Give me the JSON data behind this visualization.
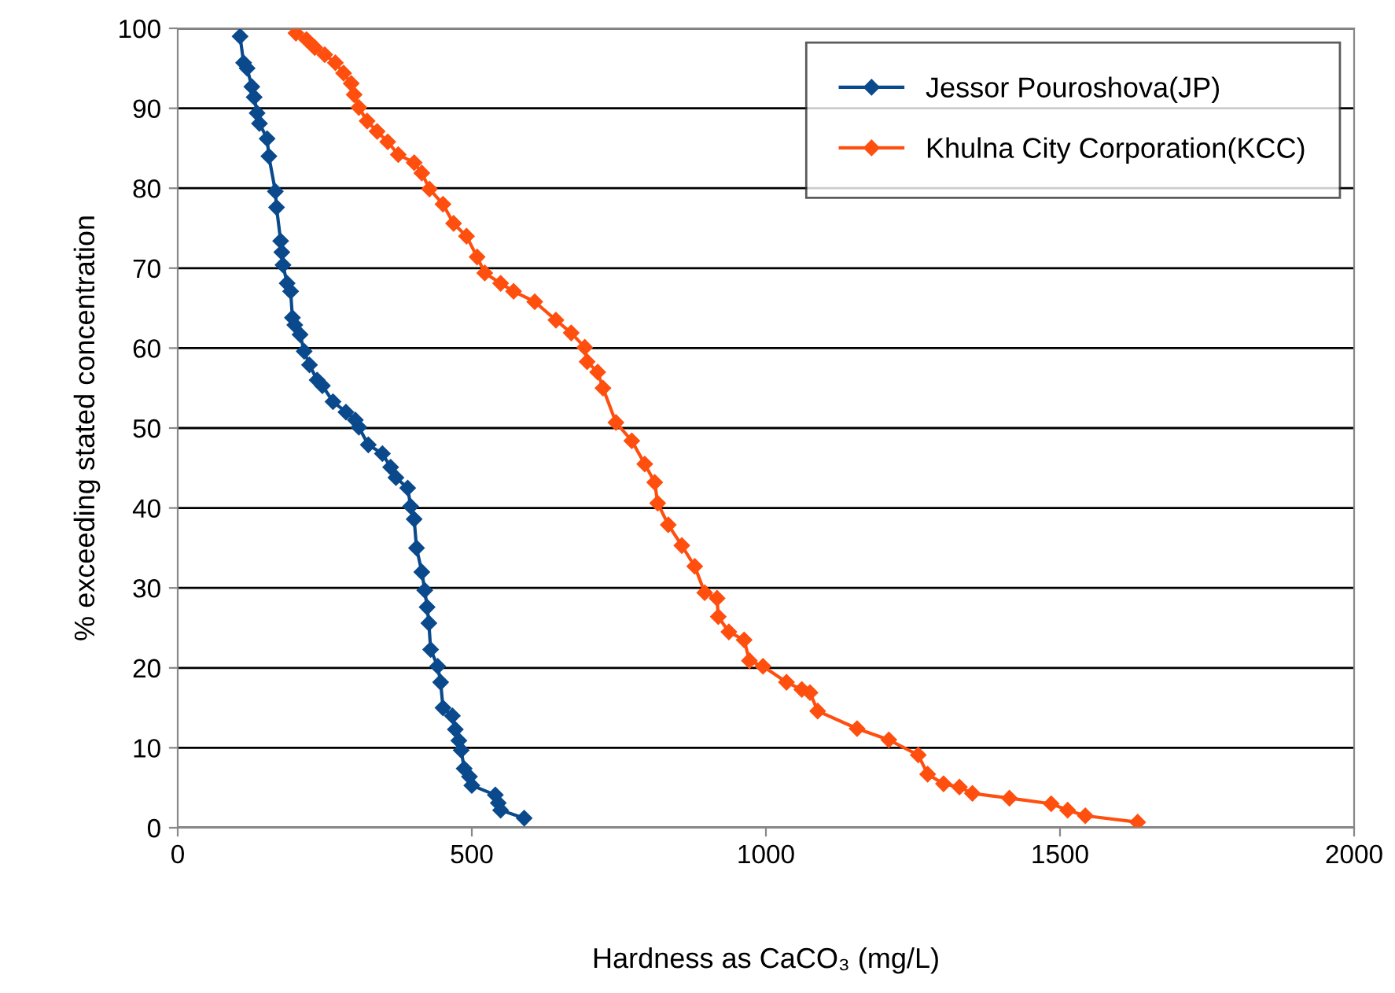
{
  "chart_data": {
    "type": "line",
    "xlabel": "Hardness as CaCO₃ (mg/L)",
    "ylabel": "% exceeding stated concentration",
    "xlim": [
      0,
      2000
    ],
    "xticks": [
      0,
      500,
      1000,
      1500,
      2000
    ],
    "ylim": [
      0,
      100
    ],
    "yticks": [
      0,
      10,
      20,
      30,
      40,
      50,
      60,
      70,
      80,
      90,
      100
    ],
    "grid": "y",
    "legend": "top right",
    "marker": "diamond",
    "line_style": "solid",
    "series": [
      {
        "name": "Jessor Pouroshova(JP)",
        "color": "#0a4a8c",
        "x": [
          106,
          112,
          118,
          126,
          130,
          135,
          139,
          152,
          155,
          166,
          168,
          175,
          177,
          179,
          186,
          192,
          195,
          199,
          208,
          215,
          224,
          237,
          246,
          264,
          286,
          302,
          308,
          324,
          348,
          362,
          371,
          391,
          396,
          402,
          406,
          415,
          420,
          424,
          427,
          430,
          442,
          447,
          451,
          467,
          472,
          478,
          482,
          487,
          496,
          500,
          540,
          545,
          549,
          589
        ],
        "values": [
          99.0,
          95.7,
          95.0,
          92.7,
          91.4,
          89.4,
          88.1,
          86.2,
          84.0,
          79.6,
          77.6,
          73.4,
          72.0,
          70.4,
          68.1,
          67.1,
          63.8,
          62.9,
          61.7,
          59.6,
          57.9,
          56.0,
          55.3,
          53.3,
          52.0,
          51.0,
          50.1,
          47.9,
          46.8,
          45.1,
          43.8,
          42.5,
          40.2,
          38.6,
          35.0,
          32.0,
          29.7,
          27.6,
          25.6,
          22.3,
          20.2,
          18.2,
          15.0,
          14.0,
          12.3,
          10.9,
          9.7,
          7.4,
          6.4,
          5.3,
          4.1,
          3.1,
          2.2,
          1.2
        ]
      },
      {
        "name": "Khulna City Corporation(KCC)",
        "color": "#ff4f0f",
        "x": [
          201,
          219,
          233,
          250,
          268,
          282,
          295,
          300,
          308,
          322,
          339,
          357,
          375,
          402,
          415,
          428,
          451,
          469,
          491,
          509,
          522,
          549,
          571,
          607,
          643,
          669,
          692,
          696,
          714,
          723,
          745,
          772,
          794,
          811,
          816,
          834,
          857,
          879,
          896,
          917,
          919,
          937,
          963,
          972,
          995,
          1035,
          1061,
          1075,
          1088,
          1155,
          1209,
          1259,
          1275,
          1302,
          1329,
          1351,
          1414,
          1485,
          1513,
          1543,
          1632
        ],
        "values": [
          99.4,
          98.6,
          97.6,
          96.7,
          95.7,
          94.4,
          93.1,
          91.7,
          90.1,
          88.4,
          87.1,
          85.8,
          84.2,
          83.2,
          81.9,
          79.9,
          78.0,
          75.6,
          74.0,
          71.4,
          69.4,
          68.1,
          67.1,
          65.8,
          63.5,
          61.9,
          60.1,
          58.3,
          57.0,
          55.0,
          50.7,
          48.4,
          45.5,
          43.2,
          40.6,
          37.9,
          35.3,
          32.7,
          29.4,
          28.7,
          26.4,
          24.5,
          23.5,
          20.9,
          20.2,
          18.2,
          17.3,
          16.9,
          14.6,
          12.4,
          11.0,
          9.1,
          6.7,
          5.5,
          5.1,
          4.3,
          3.7,
          3.0,
          2.2,
          1.5,
          0.7
        ]
      }
    ]
  }
}
